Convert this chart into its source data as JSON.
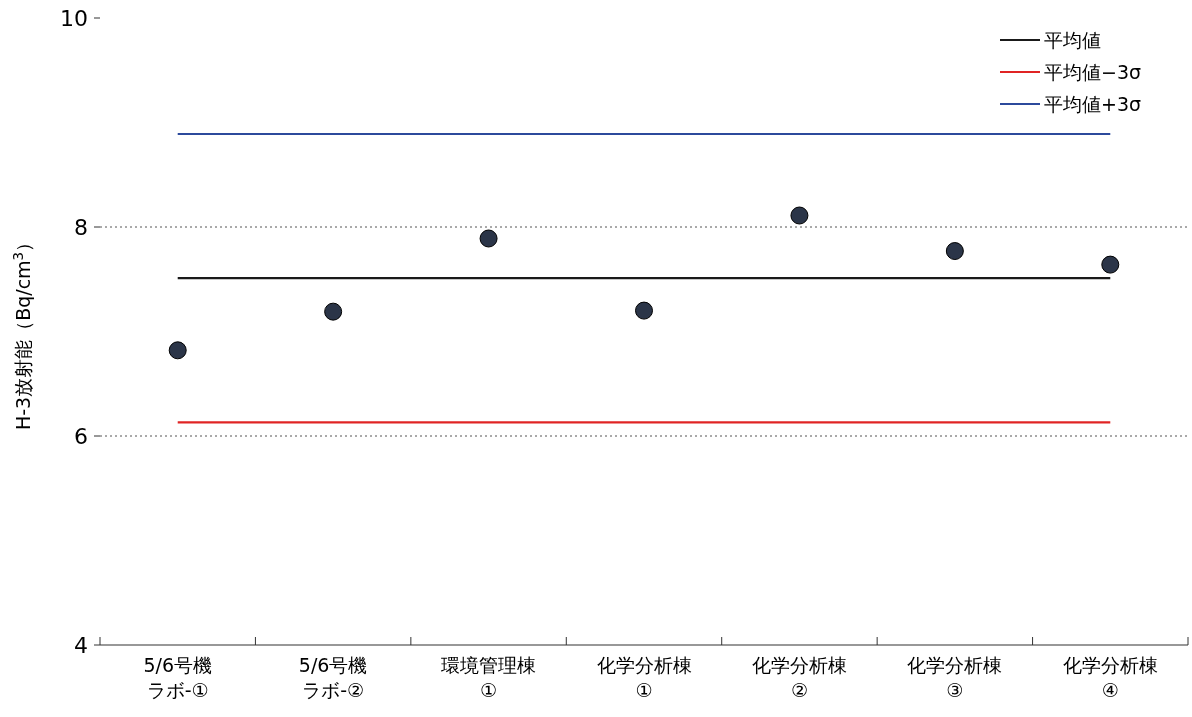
{
  "chart_data": {
    "type": "scatter",
    "ylabel": "H-3放射能（Bq/cm$^{3}$）",
    "categories": [
      "5/6号機ラボ-①",
      "5/6号機ラボ-②",
      "環境管理棟①",
      "化学分析棟①",
      "化学分析棟②",
      "化学分析棟③",
      "化学分析棟④"
    ],
    "ylim": [
      4,
      10
    ],
    "yticks": [
      4,
      6,
      8,
      10
    ],
    "grid": "y",
    "legend": "top right",
    "series": [
      {
        "color": "#2b3548",
        "marker": "circle",
        "values": [
          6.82,
          7.19,
          7.89,
          7.2,
          8.11,
          7.77,
          7.64
        ]
      },
      {
        "type": "line",
        "name": "平均値",
        "color": "#1a1a1a",
        "marker": "none",
        "values": [
          7.51,
          7.51,
          7.51,
          7.51,
          7.51,
          7.51,
          7.51
        ]
      },
      {
        "type": "line",
        "name": "平均値−3σ",
        "color": "#e02424",
        "marker": "none",
        "values": [
          6.13,
          6.13,
          6.13,
          6.13,
          6.13,
          6.13,
          6.13
        ]
      },
      {
        "type": "line",
        "name": "平均値+3σ",
        "color": "#2c4a9c",
        "marker": "none",
        "values": [
          8.89,
          8.89,
          8.89,
          8.89,
          8.89,
          8.89,
          8.89
        ]
      }
    ]
  }
}
